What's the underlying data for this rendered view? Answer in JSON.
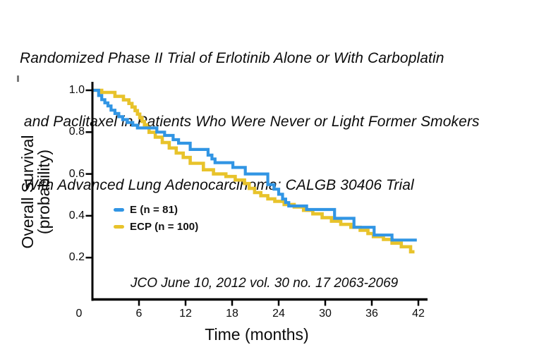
{
  "page": {
    "background": "#ffffff"
  },
  "title": {
    "lines": [
      "Randomized Phase II Trial of Erlotinib Alone or With Carboplatin",
      " and Paclitaxel in Patients Who Were Never or Light Former Smokers",
      " With Advanced Lung Adenocarcinoma: CALGB 30406 Trial"
    ]
  },
  "chart_data": {
    "type": "line",
    "variant": "kaplan_meier_step",
    "xlabel": "Time (months)",
    "ylabel_lines": [
      "Overall Survival",
      "(probability)"
    ],
    "x_ticks": [
      0,
      6,
      12,
      18,
      24,
      30,
      36,
      42
    ],
    "y_ticks": [
      "1.0",
      "0.8",
      "0.6",
      "0.4",
      "0.2"
    ],
    "xlim": [
      0,
      43.5
    ],
    "ylim": [
      0,
      1.04
    ],
    "grid": false,
    "legend_position": "inside-left-middle",
    "annotation": "JCO June 10, 2012 vol. 30 no. 17 2063-2069",
    "axis_color": "#000000",
    "series": [
      {
        "name": "ECP (n = 100)",
        "short_name": "ECP",
        "n": 100,
        "color": "#e8c32b",
        "end_month": 41.5,
        "points": [
          [
            0,
            1.0
          ],
          [
            1.2,
            0.99
          ],
          [
            2.9,
            0.971
          ],
          [
            4.0,
            0.954
          ],
          [
            4.7,
            0.937
          ],
          [
            5.1,
            0.92
          ],
          [
            5.5,
            0.903
          ],
          [
            5.8,
            0.886
          ],
          [
            6.1,
            0.868
          ],
          [
            6.4,
            0.851
          ],
          [
            6.7,
            0.835
          ],
          [
            7.0,
            0.822
          ],
          [
            7.3,
            0.799
          ],
          [
            8.1,
            0.776
          ],
          [
            9.0,
            0.75
          ],
          [
            9.9,
            0.724
          ],
          [
            10.8,
            0.7
          ],
          [
            11.7,
            0.679
          ],
          [
            12.6,
            0.651
          ],
          [
            14.3,
            0.62
          ],
          [
            15.6,
            0.6
          ],
          [
            17.2,
            0.588
          ],
          [
            18.4,
            0.571
          ],
          [
            19.6,
            0.554
          ],
          [
            20.2,
            0.531
          ],
          [
            20.9,
            0.511
          ],
          [
            21.7,
            0.496
          ],
          [
            22.6,
            0.481
          ],
          [
            23.5,
            0.469
          ],
          [
            24.7,
            0.454
          ],
          [
            26.0,
            0.442
          ],
          [
            27.2,
            0.426
          ],
          [
            28.4,
            0.409
          ],
          [
            29.6,
            0.391
          ],
          [
            30.8,
            0.374
          ],
          [
            32.0,
            0.359
          ],
          [
            33.3,
            0.345
          ],
          [
            34.5,
            0.331
          ],
          [
            35.5,
            0.315
          ],
          [
            36.2,
            0.3
          ],
          [
            37.5,
            0.287
          ],
          [
            38.6,
            0.269
          ],
          [
            39.8,
            0.252
          ],
          [
            41.0,
            0.228
          ]
        ]
      },
      {
        "name": "E (n = 81)",
        "short_name": "E",
        "n": 81,
        "color": "#3195e4",
        "end_month": 41.8,
        "points": [
          [
            0,
            1.0
          ],
          [
            0.8,
            0.975
          ],
          [
            1.2,
            0.955
          ],
          [
            1.6,
            0.94
          ],
          [
            2.0,
            0.925
          ],
          [
            2.4,
            0.905
          ],
          [
            2.9,
            0.889
          ],
          [
            3.4,
            0.874
          ],
          [
            3.9,
            0.86
          ],
          [
            4.5,
            0.846
          ],
          [
            5.2,
            0.833
          ],
          [
            5.8,
            0.82
          ],
          [
            8.3,
            0.8
          ],
          [
            9.3,
            0.784
          ],
          [
            10.4,
            0.764
          ],
          [
            11.1,
            0.747
          ],
          [
            12.6,
            0.717
          ],
          [
            14.9,
            0.69
          ],
          [
            15.4,
            0.672
          ],
          [
            15.8,
            0.654
          ],
          [
            18.1,
            0.631
          ],
          [
            19.7,
            0.6
          ],
          [
            22.6,
            0.549
          ],
          [
            23.4,
            0.527
          ],
          [
            24.0,
            0.503
          ],
          [
            24.5,
            0.48
          ],
          [
            24.9,
            0.463
          ],
          [
            25.3,
            0.447
          ],
          [
            27.6,
            0.43
          ],
          [
            31.2,
            0.388
          ],
          [
            33.7,
            0.345
          ],
          [
            36.3,
            0.308
          ],
          [
            38.6,
            0.284
          ]
        ]
      }
    ],
    "legend_order": [
      "E (n = 81)",
      "ECP (n = 100)"
    ]
  }
}
